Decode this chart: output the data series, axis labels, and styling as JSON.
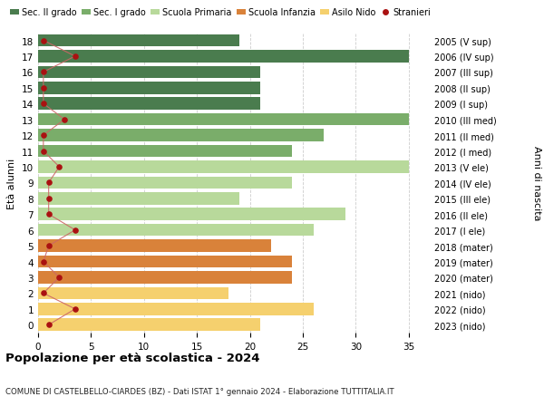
{
  "ages": [
    18,
    17,
    16,
    15,
    14,
    13,
    12,
    11,
    10,
    9,
    8,
    7,
    6,
    5,
    4,
    3,
    2,
    1,
    0
  ],
  "bar_values": [
    19,
    35,
    21,
    21,
    21,
    35,
    27,
    24,
    35,
    24,
    19,
    29,
    26,
    22,
    24,
    24,
    18,
    26,
    21
  ],
  "bar_colors": [
    "#4a7c4e",
    "#4a7c4e",
    "#4a7c4e",
    "#4a7c4e",
    "#4a7c4e",
    "#7aad6a",
    "#7aad6a",
    "#7aad6a",
    "#b8d99b",
    "#b8d99b",
    "#b8d99b",
    "#b8d99b",
    "#b8d99b",
    "#d9823a",
    "#d9823a",
    "#d9823a",
    "#f5d06e",
    "#f5d06e",
    "#f5d06e"
  ],
  "stranieri_values": [
    0.5,
    3.5,
    0.5,
    0.5,
    0.5,
    2.5,
    0.5,
    0.5,
    2,
    1,
    1,
    1,
    3.5,
    1,
    0.5,
    2,
    0.5,
    3.5,
    1
  ],
  "right_labels": [
    "2005 (V sup)",
    "2006 (IV sup)",
    "2007 (III sup)",
    "2008 (II sup)",
    "2009 (I sup)",
    "2010 (III med)",
    "2011 (II med)",
    "2012 (I med)",
    "2013 (V ele)",
    "2014 (IV ele)",
    "2015 (III ele)",
    "2016 (II ele)",
    "2017 (I ele)",
    "2018 (mater)",
    "2019 (mater)",
    "2020 (mater)",
    "2021 (nido)",
    "2022 (nido)",
    "2023 (nido)"
  ],
  "legend_labels": [
    "Sec. II grado",
    "Sec. I grado",
    "Scuola Primaria",
    "Scuola Infanzia",
    "Asilo Nido",
    "Stranieri"
  ],
  "legend_colors": [
    "#4a7c4e",
    "#7aad6a",
    "#b8d99b",
    "#d9823a",
    "#f5d06e",
    "#aa1111"
  ],
  "xlabel_vals": [
    0,
    5,
    10,
    15,
    20,
    25,
    30,
    35
  ],
  "xlim": [
    0,
    37
  ],
  "ylim": [
    -0.5,
    18.5
  ],
  "ylabel": "Età alunni",
  "right_ylabel": "Anni di nascita",
  "title": "Popolazione per età scolastica - 2024",
  "subtitle": "COMUNE DI CASTELBELLO-CIARDES (BZ) - Dati ISTAT 1° gennaio 2024 - Elaborazione TUTTITALIA.IT",
  "bar_height": 0.78,
  "stranieri_color": "#aa1111",
  "stranieri_line_color": "#cc6666",
  "background_color": "#ffffff",
  "grid_color": "#cccccc"
}
